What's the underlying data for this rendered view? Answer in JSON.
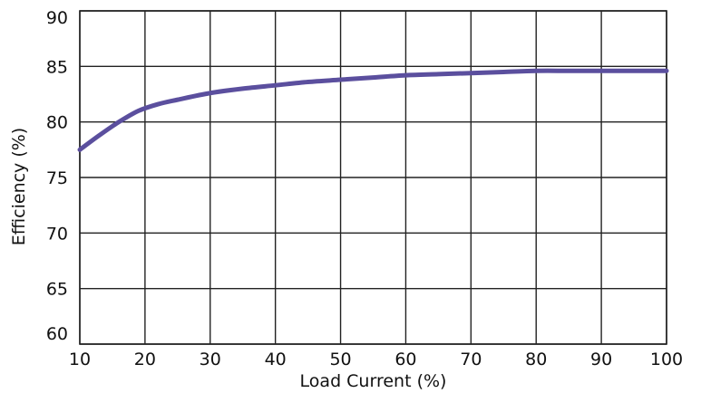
{
  "chart_data": {
    "type": "line",
    "title": "",
    "xlabel": "Load Current (%)",
    "ylabel": "Efficiency (%)",
    "xlim": [
      10,
      100
    ],
    "ylim": [
      60,
      90
    ],
    "x_ticks": [
      10,
      20,
      30,
      40,
      50,
      60,
      70,
      80,
      90,
      100
    ],
    "y_ticks": [
      60,
      65,
      70,
      75,
      80,
      85,
      90
    ],
    "grid": true,
    "legend": "none",
    "series": [
      {
        "color": "#5b4f9e",
        "x": [
          10,
          13,
          16,
          19,
          22,
          25,
          30,
          35,
          40,
          45,
          50,
          55,
          60,
          65,
          70,
          75,
          80,
          85,
          90,
          95,
          100
        ],
        "y": [
          77.5,
          78.8,
          80.0,
          81.0,
          81.6,
          82.0,
          82.6,
          83.0,
          83.3,
          83.6,
          83.8,
          84.0,
          84.2,
          84.3,
          84.4,
          84.5,
          84.6,
          84.6,
          84.6,
          84.6,
          84.6
        ]
      }
    ]
  }
}
